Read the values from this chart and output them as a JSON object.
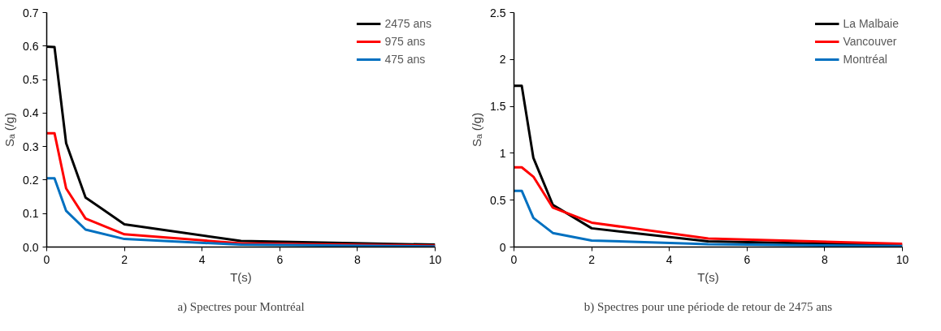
{
  "chart_data": [
    {
      "type": "line",
      "xlabel": "T(s)",
      "ylabel": "Sₐ (/g)",
      "annotations": [
        "a) Spectres pour Montréal"
      ],
      "x": [
        0,
        0.2,
        0.5,
        1,
        2,
        5,
        10
      ],
      "series": [
        {
          "name": "2475 ans",
          "color": "#000000",
          "values": [
            0.598,
            0.597,
            0.31,
            0.148,
            0.068,
            0.018,
            0.007
          ]
        },
        {
          "name": "975 ans",
          "color": "#ff0000",
          "values": [
            0.34,
            0.34,
            0.175,
            0.085,
            0.038,
            0.011,
            0.004
          ]
        },
        {
          "name": "475 ans",
          "color": "#0070c0",
          "values": [
            0.205,
            0.205,
            0.108,
            0.052,
            0.024,
            0.007,
            0.002
          ]
        }
      ],
      "xlim": [
        0,
        10
      ],
      "xticks": [
        0,
        2,
        4,
        6,
        8,
        10
      ],
      "ylim": [
        0,
        0.7
      ],
      "yticks": [
        {
          "value": 0,
          "label": "0.0"
        },
        0.1,
        0.2,
        0.3,
        0.4,
        0.5,
        0.6,
        0.7
      ],
      "grid": false,
      "legend": "top right",
      "marker": "none",
      "line_style": "solid"
    },
    {
      "type": "line",
      "xlabel": "T(s)",
      "ylabel": "Sₐ (/g)",
      "annotations": [
        "b) Spectres pour une période de retour de 2475 ans"
      ],
      "x": [
        0,
        0.2,
        0.5,
        1,
        2,
        5,
        10
      ],
      "series": [
        {
          "name": "La Malbaie",
          "color": "#000000",
          "values": [
            1.72,
            1.72,
            0.95,
            0.45,
            0.2,
            0.06,
            0.02
          ]
        },
        {
          "name": "Vancouver",
          "color": "#ff0000",
          "values": [
            0.85,
            0.85,
            0.75,
            0.42,
            0.26,
            0.09,
            0.035
          ]
        },
        {
          "name": "Montréal",
          "color": "#0070c0",
          "values": [
            0.6,
            0.6,
            0.31,
            0.15,
            0.07,
            0.03,
            0.01
          ]
        }
      ],
      "xlim": [
        0,
        10
      ],
      "xticks": [
        0,
        2,
        4,
        6,
        8,
        10
      ],
      "ylim": [
        0,
        2.5
      ],
      "yticks": [
        0,
        0.5,
        1,
        1.5,
        2,
        2.5
      ],
      "grid": false,
      "legend": "top right",
      "marker": "none",
      "line_style": "solid"
    }
  ]
}
